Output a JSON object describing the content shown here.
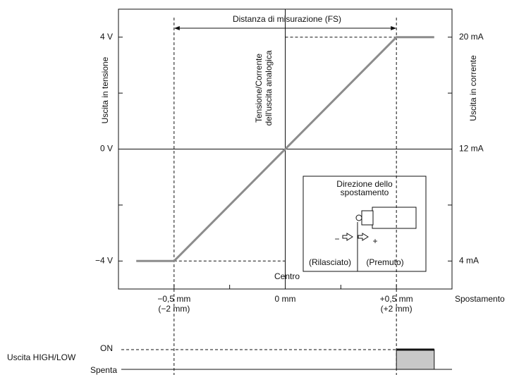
{
  "chart_data": {
    "type": "line",
    "x": [
      -0.67,
      -0.5,
      0.5,
      0.67
    ],
    "values": [
      -4,
      -4,
      4,
      4
    ],
    "color": "#8c8c8c",
    "xlim": [
      -0.75,
      0.75
    ],
    "xticks": [
      {
        "value": -0.5,
        "label": "−0,5 mm",
        "label2": "(−2 mm)"
      },
      {
        "value": 0,
        "label": "0 mm"
      },
      {
        "value": 0.5,
        "label": "+0,5 mm",
        "label2": "(+2 mm)"
      }
    ],
    "xticks_minor": [
      -0.25,
      0.25
    ],
    "ylim": [
      -5,
      5
    ],
    "yticks": [
      {
        "value": -4,
        "label": "−4 V"
      },
      {
        "value": 0,
        "label": "0 V"
      },
      {
        "value": 4,
        "label": "4 V"
      }
    ],
    "yticks_minor": [
      -2,
      2
    ],
    "y2lim": [
      2,
      22
    ],
    "y2ticks": [
      {
        "value": 4,
        "label": "4 mA"
      },
      {
        "value": 12,
        "label": "12 mA"
      },
      {
        "value": 20,
        "label": "20 mA"
      }
    ],
    "ylabel": "Uscita in tensione",
    "y2label": "Uscita in corrente",
    "xlabel": "Spostamento",
    "annotations": {
      "range": "Distanza di misurazione (FS)",
      "output_line1": "Tensione/Corrente",
      "output_line2": "dell'uscita analogica",
      "center": "Centro"
    },
    "inset": {
      "title_line1": "Direzione dello",
      "title_line2": "spostamento",
      "minus": "−",
      "plus": "+",
      "left": "(Rilasciato)",
      "right": "(Premuto)"
    },
    "switch_output": {
      "label": "Uscita HIGH/LOW",
      "on_label": "ON",
      "off_label": "Spenta",
      "on_from": 0.5,
      "on_to": 0.67
    }
  }
}
